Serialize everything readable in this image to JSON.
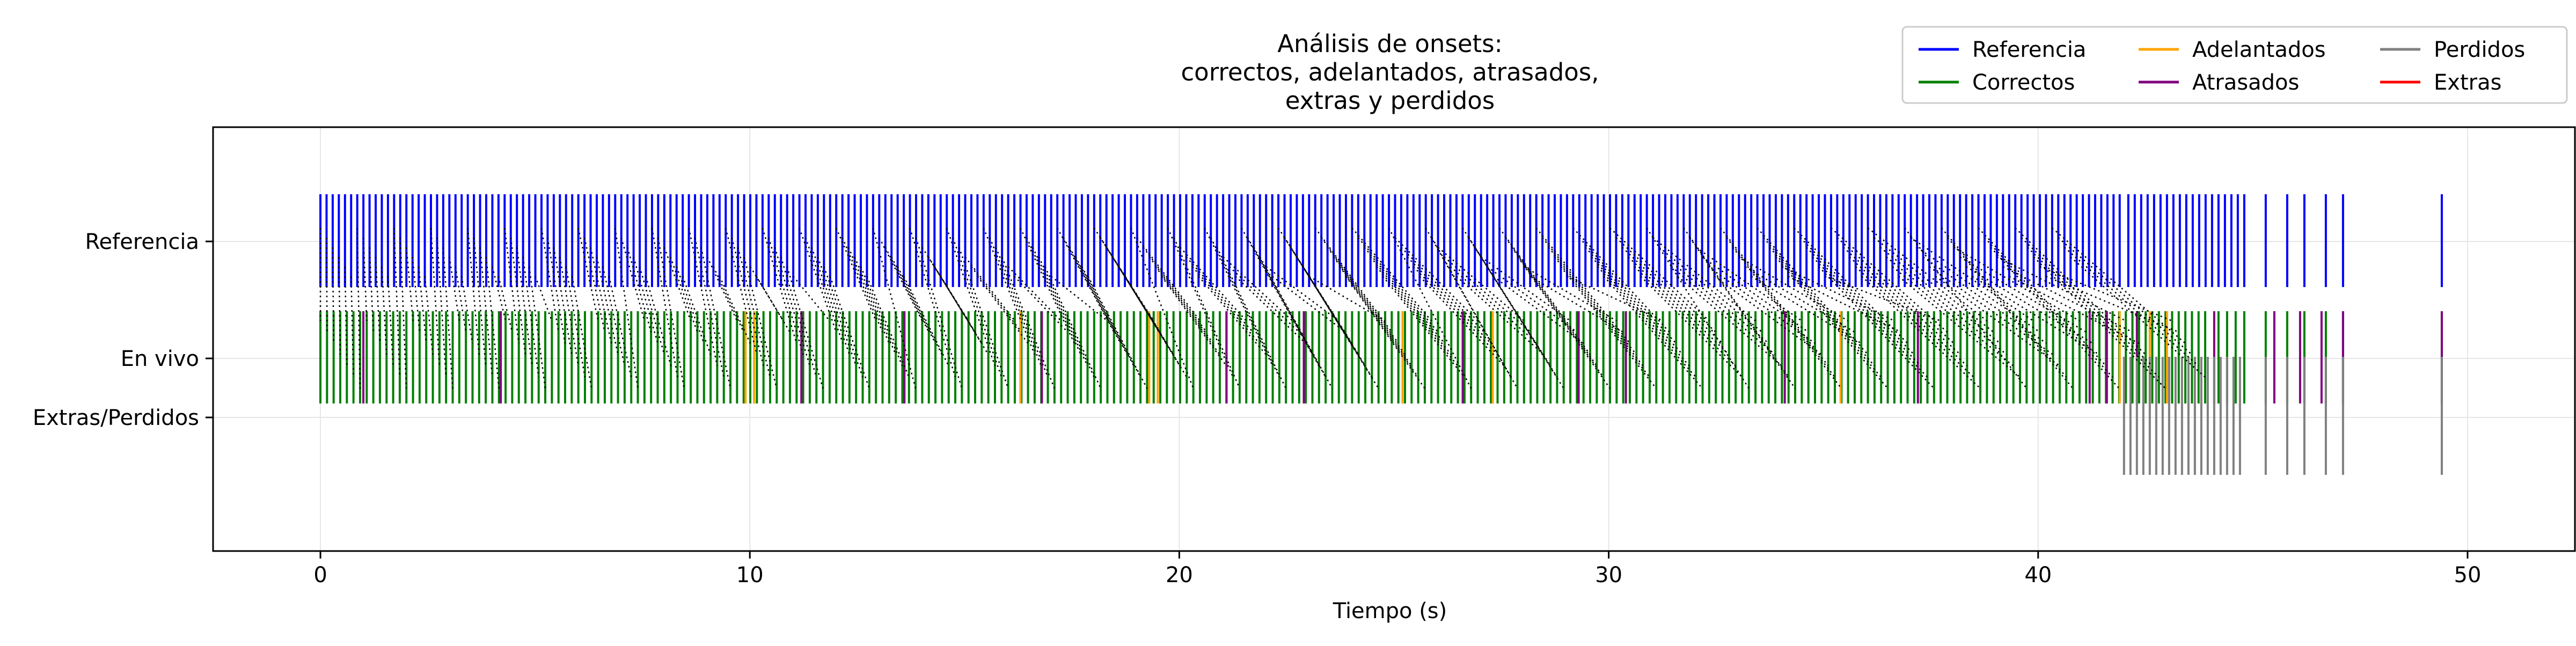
{
  "chart_data": {
    "type": "event-raster",
    "title_lines": [
      "Análisis de onsets:",
      "correctos, adelantados, atrasados,",
      "extras y perdidos"
    ],
    "xlabel": "Tiempo (s)",
    "ylabel": "",
    "xlim": [
      -2.5,
      52.5
    ],
    "x_ticks": [
      0,
      10,
      20,
      30,
      40,
      50
    ],
    "y_ticks": [
      "Referencia",
      "En vivo",
      "Extras/Perdidos"
    ],
    "grid": true,
    "legend_position": "upper-right",
    "legend": [
      {
        "label": "Referencia",
        "color": "#0000ff"
      },
      {
        "label": "Correctos",
        "color": "#008000"
      },
      {
        "label": "Adelantados",
        "color": "#ffa500"
      },
      {
        "label": "Atrasados",
        "color": "#800080"
      },
      {
        "label": "Perdidos",
        "color": "#808080"
      },
      {
        "label": "Extras",
        "color": "#ff0000"
      }
    ],
    "series": {
      "reference_start": 0.0,
      "reference_end": 42.0,
      "reference_interval": 0.143,
      "reference_late": [
        42.1,
        42.25,
        42.4,
        42.55,
        42.7,
        42.85,
        43.0,
        43.15,
        43.3,
        43.45,
        43.6,
        43.75,
        43.9,
        44.05,
        44.2,
        44.35,
        44.5,
        44.65,
        44.8,
        45.3,
        45.8,
        46.2,
        46.7,
        47.1,
        49.4
      ],
      "live_start": 0.0,
      "live_end": 44.0,
      "live_interval": 0.154,
      "live_late": [
        44.2,
        44.4,
        44.6,
        44.8,
        45.3,
        45.8,
        46.2,
        46.7,
        47.1,
        49.4
      ],
      "adelantados": [
        9.9,
        10.1,
        16.3,
        19.3,
        19.5,
        25.2,
        27.3,
        35.4,
        41.9,
        42.6,
        43.0
      ],
      "atrasados": [
        1.0,
        4.2,
        11.2,
        13.6,
        16.8,
        21.1,
        22.9,
        26.6,
        29.3,
        30.4,
        34.1,
        37.2,
        41.2,
        41.6,
        42.3,
        44.1,
        45.5,
        46.1,
        46.6,
        47.1,
        49.4
      ],
      "perdidos": [
        42.0,
        42.15,
        42.3,
        42.45,
        42.6,
        42.75,
        42.9,
        43.05,
        43.2,
        43.35,
        43.5,
        43.65,
        43.8,
        43.95,
        44.1,
        44.25,
        44.4,
        44.55,
        44.7,
        45.3,
        45.8,
        46.2,
        46.7,
        47.1,
        49.4
      ],
      "extras": []
    }
  }
}
